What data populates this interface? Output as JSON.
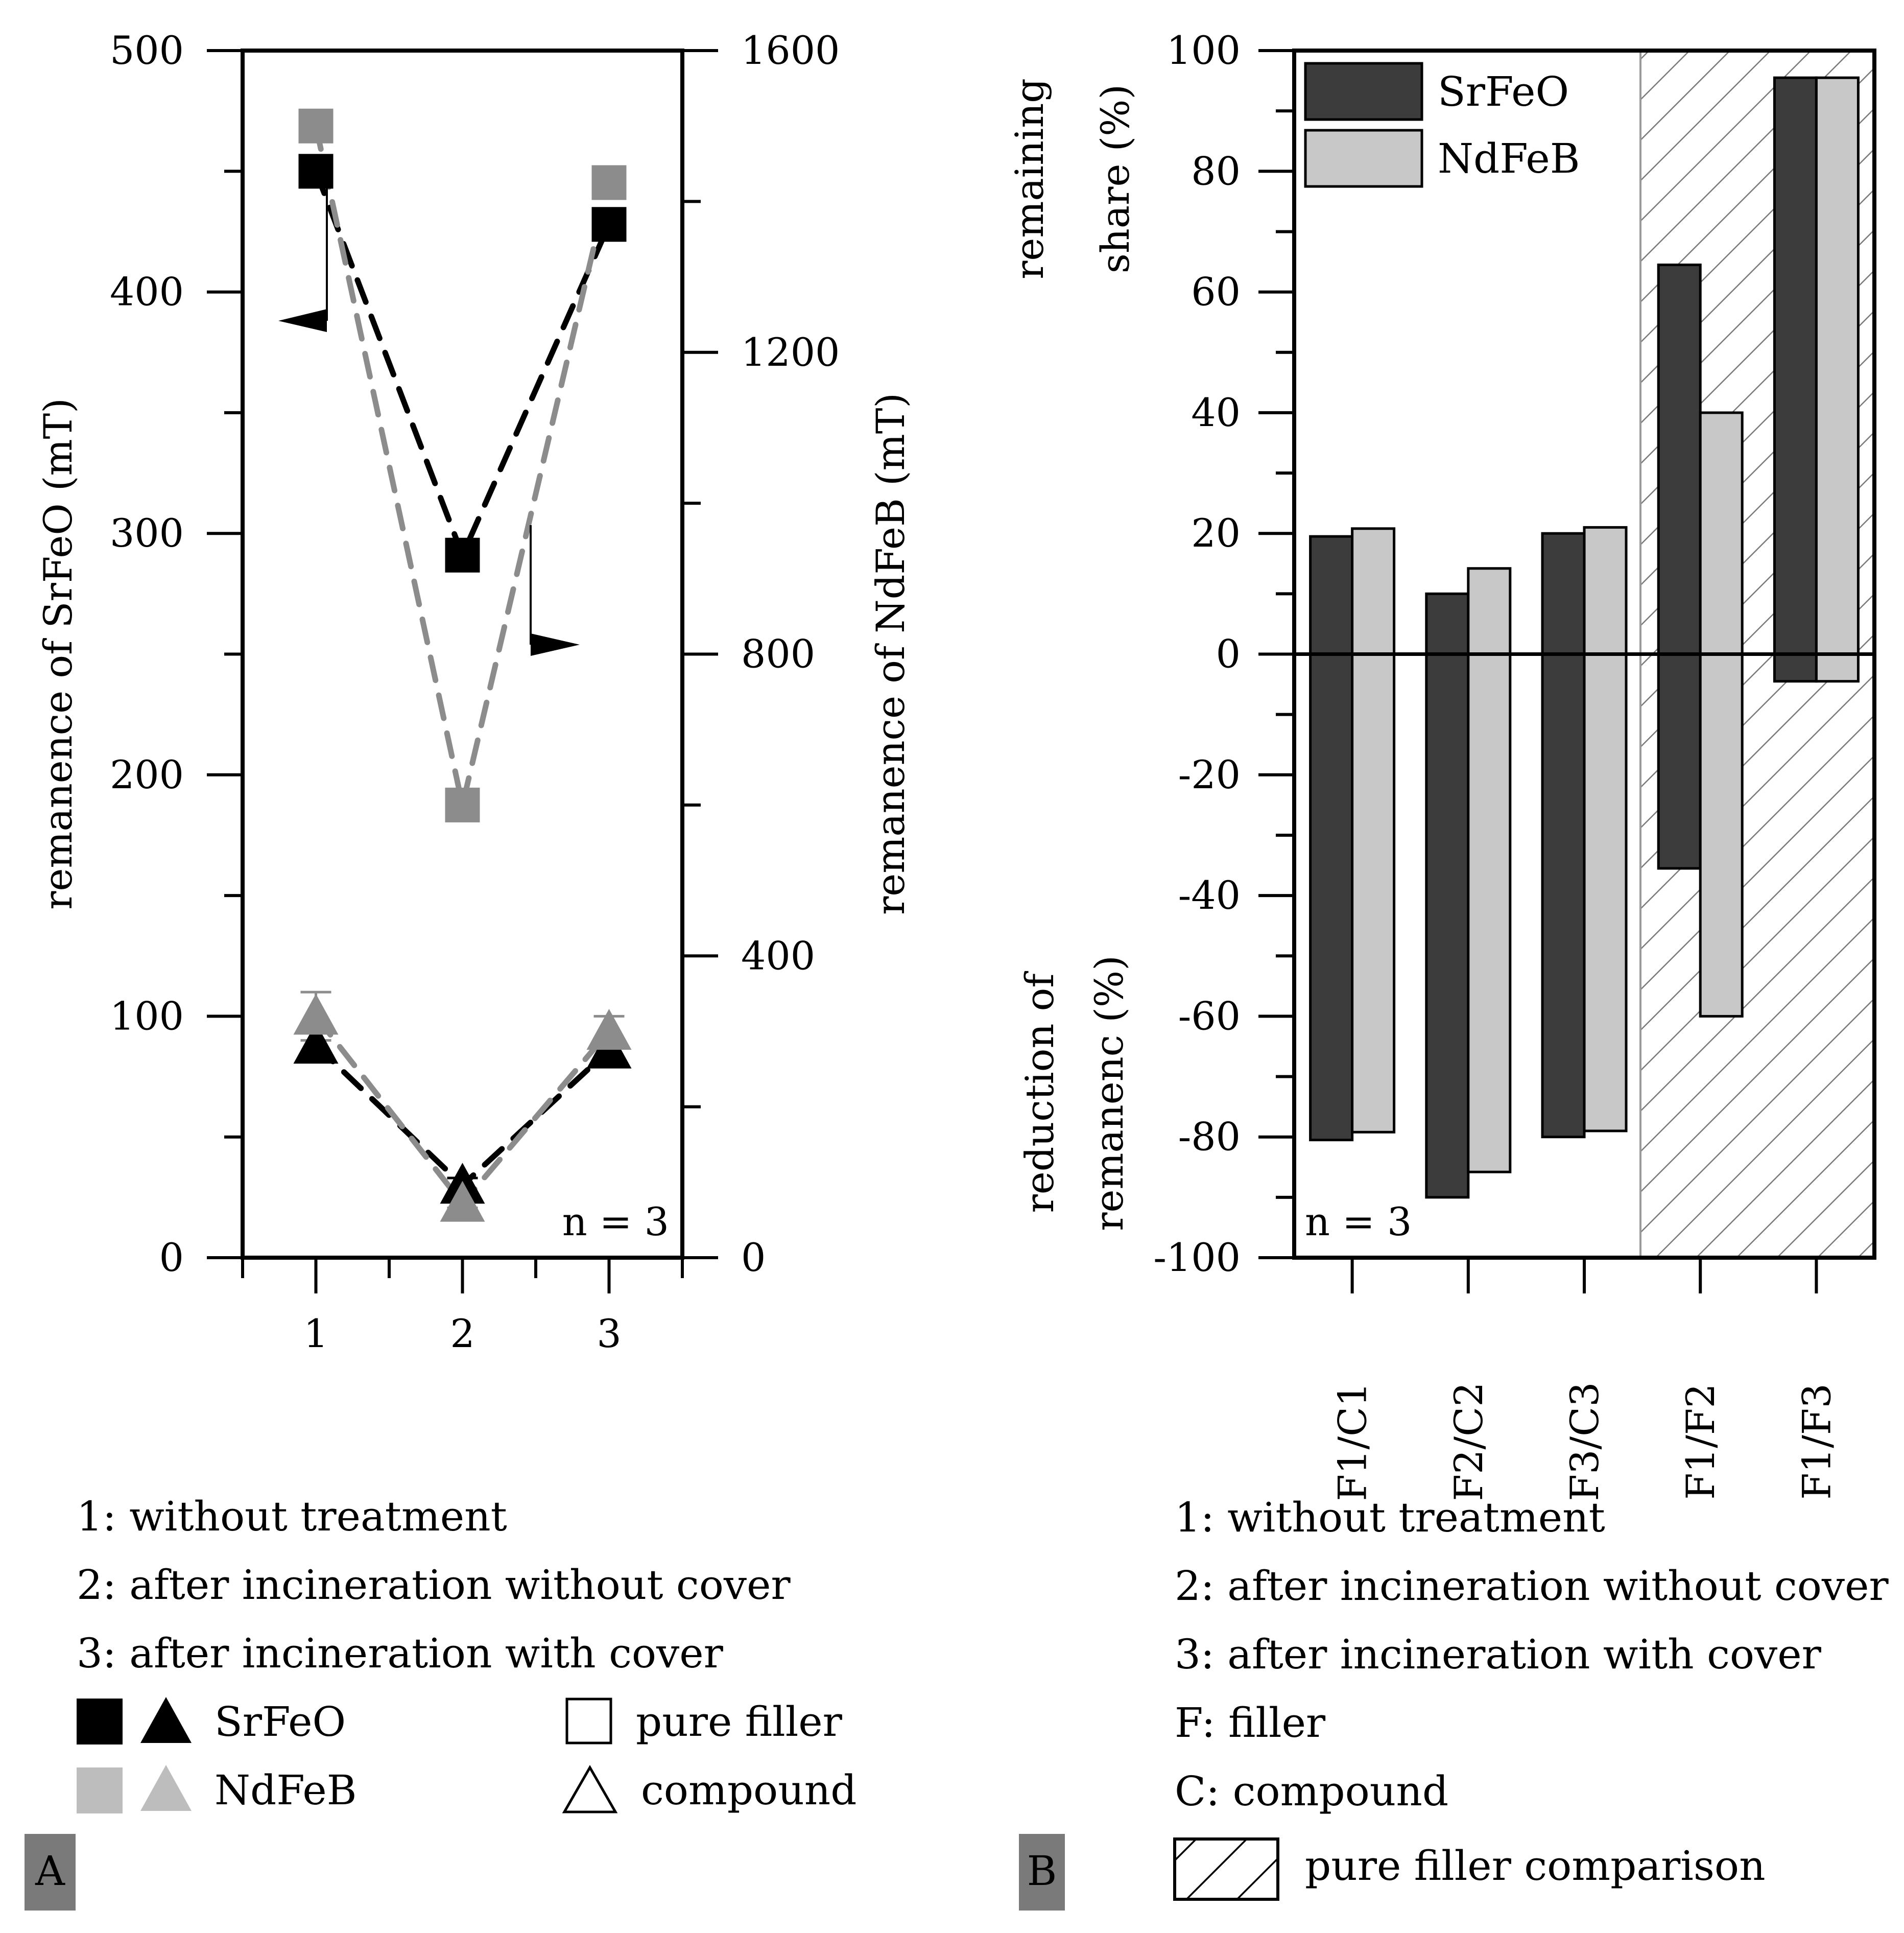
{
  "panel_a": {
    "label": "A",
    "n_label": "n = 3",
    "legend_lines": [
      "1: without treatment",
      "2: after incineration without cover",
      "3: after incineration with cover"
    ],
    "legend_materials": {
      "srfeo": "SrFeO",
      "ndfeb": "NdFeB"
    },
    "legend_types": {
      "filler": "pure filler",
      "compound": "compound"
    }
  },
  "panel_b": {
    "label": "B",
    "n_label": "n = 3",
    "annotation_top": [
      "remaining",
      "share (%)"
    ],
    "annotation_bottom": [
      "reduction of",
      "remanenc (%)"
    ],
    "legend_series": [
      "SrFeO",
      "NdFeB"
    ],
    "legend_lines": [
      "1: without treatment",
      "2: after incineration without cover",
      "3: after incineration with cover",
      "F: filler",
      "C: compound"
    ],
    "legend_hatch": "pure filler comparison"
  },
  "colors": {
    "srfeo": "#000000",
    "ndfeb": "#8c8c8c",
    "ndfeb_legend": "#bdbdbd",
    "bar_srfeo": "#3c3c3c",
    "bar_ndfeb": "#c8c8c8",
    "label_box": "#7a7a7a"
  },
  "chart_data": [
    {
      "type": "scatter",
      "title": "A",
      "xlabel": "",
      "ylabel": "remanence of SrFeO (mT)",
      "y2label": "remanence of NdFeB (mT)",
      "categories": [
        "1",
        "2",
        "3"
      ],
      "x": [
        1,
        2,
        3
      ],
      "xlim": [
        0.5,
        3.5
      ],
      "ylim": [
        0,
        500
      ],
      "y2lim": [
        0,
        1600
      ],
      "yticks": [
        0,
        100,
        200,
        300,
        400,
        500
      ],
      "y2ticks": [
        0,
        400,
        800,
        1200,
        1600
      ],
      "series": [
        {
          "name": "SrFeO pure filler",
          "material": "srfeo",
          "marker": "square",
          "axis": "left",
          "values": [
            450,
            291,
            428
          ],
          "errors": [
            0,
            0,
            0
          ]
        },
        {
          "name": "NdFeB pure filler",
          "material": "ndfeb",
          "marker": "square",
          "axis": "right",
          "values": [
            1500,
            600,
            1425
          ],
          "errors": [
            0,
            0,
            0
          ]
        },
        {
          "name": "SrFeO compound",
          "material": "srfeo",
          "marker": "triangle",
          "axis": "left",
          "values": [
            88,
            30,
            86
          ],
          "errors": [
            6,
            3,
            4
          ]
        },
        {
          "name": "NdFeB compound",
          "material": "ndfeb",
          "marker": "triangle",
          "axis": "right",
          "values": [
            320,
            72,
            300
          ],
          "errors": [
            32,
            6,
            20
          ]
        }
      ]
    },
    {
      "type": "bar",
      "title": "B",
      "categories": [
        "F1/C1",
        "F2/C2",
        "F3/C3",
        "F1/F2",
        "F1/F3"
      ],
      "ylim": [
        -100,
        100
      ],
      "yticks": [
        -100,
        -80,
        -60,
        -40,
        -20,
        0,
        20,
        40,
        60,
        80,
        100
      ],
      "ylabel": "",
      "hatched_categories": [
        "F1/F2",
        "F1/F3"
      ],
      "series": [
        {
          "name": "SrFeO",
          "remaining_share": [
            19.5,
            10,
            20,
            64.5,
            95.5
          ],
          "reduction": [
            -80.5,
            -90,
            -80,
            -35.5,
            -4.5
          ]
        },
        {
          "name": "NdFeB",
          "remaining_share": [
            20.8,
            14.2,
            21,
            40,
            95.5
          ],
          "reduction": [
            -79.2,
            -85.8,
            -79,
            -60,
            -4.5
          ]
        }
      ]
    }
  ]
}
